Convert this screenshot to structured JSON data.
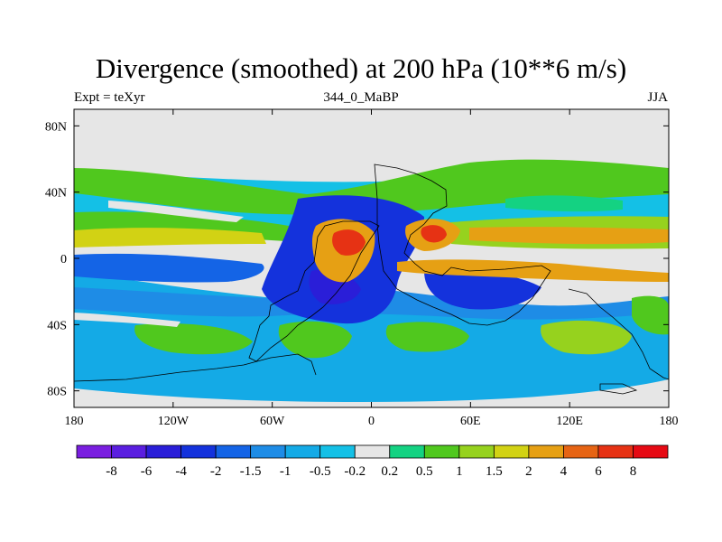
{
  "title": "Divergence (smoothed) at 200 hPa (10**6 m/s)",
  "left_label": "Expt = teXyr",
  "center_label": "344_0_MaBP",
  "right_label": "JJA",
  "map": {
    "type": "filled-contour-map",
    "projection": "cylindrical-equidistant",
    "lon_range": [
      -180,
      180
    ],
    "lat_range": [
      -90,
      90
    ],
    "x_ticks": [
      {
        "value": -180,
        "label": "180"
      },
      {
        "value": -120,
        "label": "120W"
      },
      {
        "value": -60,
        "label": "60W"
      },
      {
        "value": 0,
        "label": "0"
      },
      {
        "value": 60,
        "label": "60E"
      },
      {
        "value": 120,
        "label": "120E"
      },
      {
        "value": 180,
        "label": "180"
      }
    ],
    "y_ticks": [
      {
        "value": 80,
        "label": "80N"
      },
      {
        "value": 40,
        "label": "40N"
      },
      {
        "value": 0,
        "label": "0"
      },
      {
        "value": -40,
        "label": "40S"
      },
      {
        "value": -80,
        "label": "80S"
      }
    ],
    "background_color": "#e6e6e6",
    "coastline_color": "#000000"
  },
  "colorbar": {
    "labels": [
      "-8",
      "-6",
      "-4",
      "-2",
      "-1.5",
      "-1",
      "-0.5",
      "-0.2",
      "0.2",
      "0.5",
      "1",
      "1.5",
      "2",
      "4",
      "6",
      "8"
    ],
    "colors": [
      "#7a1ee0",
      "#5a1ee0",
      "#2a1ed8",
      "#1432dc",
      "#1464e6",
      "#1e8ce6",
      "#14aae6",
      "#14c0e6",
      "#e6e6e6",
      "#14d282",
      "#50c81e",
      "#96d21e",
      "#d2d214",
      "#e6a014",
      "#e66414",
      "#e63214",
      "#e60a14"
    ]
  }
}
